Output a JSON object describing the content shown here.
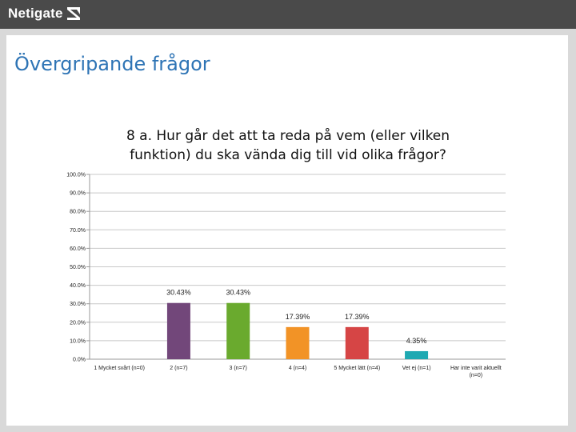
{
  "header": {
    "logo_text": "Netigate",
    "logo_icon": "netigate-mark-icon"
  },
  "page": {
    "title": "Övergripande frågor"
  },
  "colors": {
    "header_bg": "#4a4a4a",
    "title_blue": "#2e74b5",
    "gridline": "#c8c8c8"
  },
  "chart_data": {
    "type": "bar",
    "title_lines": [
      "8 a. Hur går det att ta reda på vem (eller vilken",
      "funktion) du ska vända dig till vid olika frågor?"
    ],
    "categories": [
      [
        "1 Mycket svårt (n=0)"
      ],
      [
        "2 (n=7)"
      ],
      [
        "3 (n=7)"
      ],
      [
        "4 (n=4)"
      ],
      [
        "5 Mycket lätt (n=4)"
      ],
      [
        "Vet ej (n=1)"
      ],
      [
        "Har inte varit aktuellt",
        "(n=0)"
      ]
    ],
    "values": [
      0,
      30.43,
      30.43,
      17.39,
      17.39,
      4.35,
      0
    ],
    "data_labels": [
      "",
      "30.43%",
      "30.43%",
      "17.39%",
      "17.39%",
      "4.35%",
      ""
    ],
    "colors": [
      "#7f7f7f",
      "#72477a",
      "#6aaa2e",
      "#f29326",
      "#d64545",
      "#1fa9b2",
      "#999999"
    ],
    "ylim": [
      0,
      100
    ],
    "yticks": [
      0,
      10,
      20,
      30,
      40,
      50,
      60,
      70,
      80,
      90,
      100
    ],
    "ytick_labels": [
      "0.0%",
      "10.0%",
      "20.0%",
      "30.0%",
      "40.0%",
      "50.0%",
      "60.0%",
      "70.0%",
      "80.0%",
      "90.0%",
      "100.0%"
    ],
    "grid": true,
    "xlabel": "",
    "ylabel": ""
  }
}
